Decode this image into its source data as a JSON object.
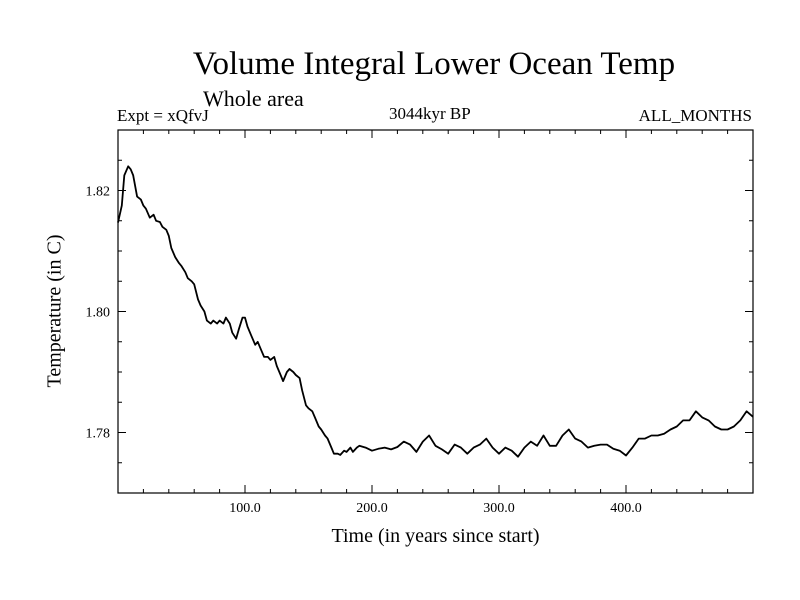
{
  "chart_data": {
    "type": "line",
    "title": "Volume Integral Lower Ocean Temp",
    "subtitle": "Whole area",
    "experiment_label": "Expt = xQfvJ",
    "era_label": "3044kyr BP",
    "months_label": "ALL_MONTHS",
    "xlabel": "Time (in years since start)",
    "ylabel": "Temperature (in C)",
    "xlim": [
      0,
      500
    ],
    "ylim": [
      1.77,
      1.83
    ],
    "xticks": [
      {
        "value": 100,
        "label": "100.0"
      },
      {
        "value": 200,
        "label": "200.0"
      },
      {
        "value": 300,
        "label": "300.0"
      },
      {
        "value": 400,
        "label": "400.0"
      }
    ],
    "yticks": [
      {
        "value": 1.78,
        "label": "1.78"
      },
      {
        "value": 1.8,
        "label": "1.80"
      },
      {
        "value": 1.82,
        "label": "1.82"
      }
    ],
    "series": [
      {
        "name": "Lower Ocean Temp",
        "color": "#000000",
        "x": [
          0,
          3,
          5,
          8,
          10,
          12,
          15,
          18,
          20,
          22,
          25,
          28,
          30,
          33,
          35,
          38,
          40,
          42,
          45,
          48,
          50,
          53,
          55,
          58,
          60,
          63,
          65,
          68,
          70,
          73,
          75,
          78,
          80,
          83,
          85,
          88,
          90,
          93,
          95,
          98,
          100,
          102,
          105,
          108,
          110,
          113,
          115,
          118,
          120,
          123,
          125,
          128,
          130,
          133,
          135,
          138,
          140,
          143,
          145,
          148,
          150,
          153,
          155,
          158,
          160,
          163,
          165,
          168,
          170,
          173,
          175,
          178,
          180,
          183,
          185,
          188,
          190,
          195,
          200,
          205,
          210,
          215,
          220,
          225,
          230,
          235,
          240,
          245,
          250,
          255,
          260,
          265,
          270,
          275,
          280,
          285,
          290,
          295,
          300,
          305,
          310,
          315,
          320,
          325,
          330,
          335,
          340,
          345,
          350,
          355,
          360,
          365,
          370,
          375,
          380,
          385,
          390,
          395,
          400,
          405,
          410,
          415,
          420,
          425,
          430,
          435,
          440,
          445,
          450,
          455,
          460,
          465,
          470,
          475,
          480,
          485,
          490,
          495,
          500
        ],
        "values": [
          1.8147,
          1.8175,
          1.8225,
          1.824,
          1.8235,
          1.8225,
          1.819,
          1.8185,
          1.8175,
          1.817,
          1.8155,
          1.816,
          1.815,
          1.8148,
          1.814,
          1.8135,
          1.8125,
          1.8105,
          1.809,
          1.808,
          1.8075,
          1.8065,
          1.8055,
          1.805,
          1.8045,
          1.802,
          1.801,
          1.8,
          1.7985,
          1.798,
          1.7985,
          1.798,
          1.7985,
          1.798,
          1.799,
          1.798,
          1.7965,
          1.7955,
          1.797,
          1.799,
          1.799,
          1.7975,
          1.796,
          1.7945,
          1.795,
          1.7935,
          1.7925,
          1.7925,
          1.792,
          1.7925,
          1.791,
          1.7895,
          1.7885,
          1.79,
          1.7905,
          1.79,
          1.7895,
          1.789,
          1.787,
          1.7845,
          1.784,
          1.7835,
          1.7825,
          1.781,
          1.7805,
          1.7795,
          1.779,
          1.7775,
          1.7765,
          1.7765,
          1.7763,
          1.777,
          1.7768,
          1.7775,
          1.7768,
          1.7775,
          1.7778,
          1.7775,
          1.777,
          1.7773,
          1.7775,
          1.7772,
          1.7776,
          1.7785,
          1.778,
          1.7768,
          1.7785,
          1.7795,
          1.7778,
          1.7772,
          1.7765,
          1.778,
          1.7775,
          1.7765,
          1.7775,
          1.778,
          1.779,
          1.7775,
          1.7765,
          1.7775,
          1.777,
          1.776,
          1.7775,
          1.7785,
          1.7778,
          1.7795,
          1.7778,
          1.7778,
          1.7795,
          1.7805,
          1.779,
          1.7785,
          1.7775,
          1.7778,
          1.778,
          1.778,
          1.7773,
          1.777,
          1.7762,
          1.7775,
          1.779,
          1.779,
          1.7795,
          1.7795,
          1.7798,
          1.7805,
          1.781,
          1.782,
          1.782,
          1.7835,
          1.7825,
          1.782,
          1.781,
          1.7805,
          1.7805,
          1.781,
          1.782,
          1.7835,
          1.7826
        ]
      }
    ]
  }
}
